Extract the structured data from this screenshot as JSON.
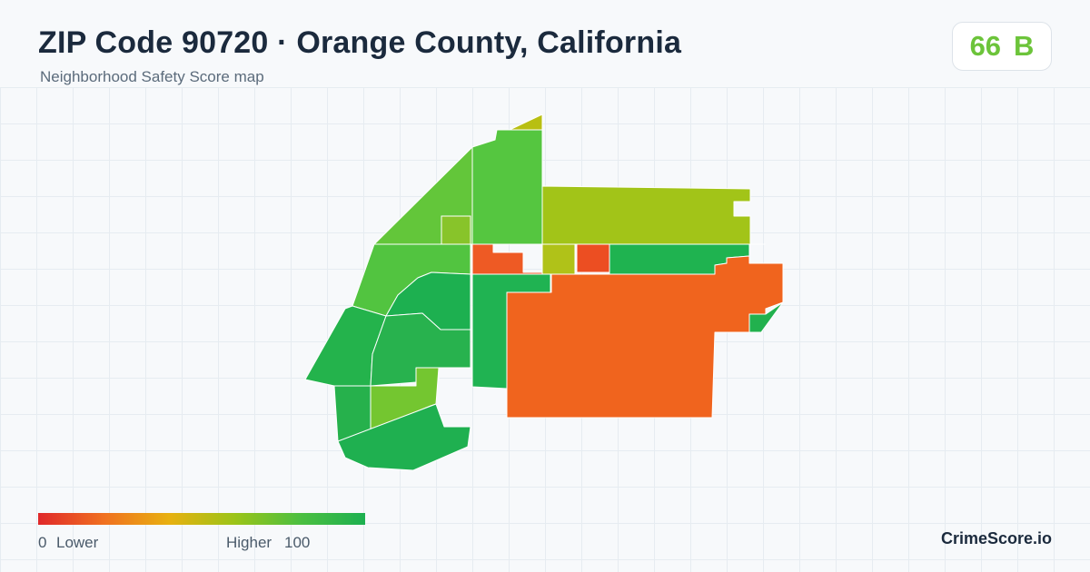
{
  "header": {
    "title": "ZIP Code 90720 · Orange County, California",
    "subtitle": "Neighborhood Safety Score map"
  },
  "score": {
    "value": "66",
    "grade": "B",
    "color": "#6cc43a"
  },
  "legend": {
    "min_label": "0",
    "low_label": "Lower",
    "high_label": "Higher",
    "max_label": "100",
    "gradient_colors": [
      "#e0282a",
      "#f07020",
      "#e8b010",
      "#9cc418",
      "#4cbf40",
      "#1db050"
    ]
  },
  "brand": "CrimeScore.io",
  "map": {
    "regions": [
      {
        "name": "north-tip",
        "color": "#b8bf12"
      },
      {
        "name": "northwest-strip",
        "color": "#63c63a"
      },
      {
        "name": "north-center",
        "color": "#55c640"
      },
      {
        "name": "small-block",
        "color": "#88c42a"
      },
      {
        "name": "east-upper",
        "color": "#a2c418"
      },
      {
        "name": "center-left-red",
        "color": "#ee5a24"
      },
      {
        "name": "center-small-yellow",
        "color": "#b0c218"
      },
      {
        "name": "center-small-red",
        "color": "#ec4e22"
      },
      {
        "name": "east-strip",
        "color": "#1fb350"
      },
      {
        "name": "west-upper",
        "color": "#52c440"
      },
      {
        "name": "west-middle",
        "color": "#24b34c"
      },
      {
        "name": "inner-cluster",
        "color": "#1db050"
      },
      {
        "name": "center-strip",
        "color": "#20b352"
      },
      {
        "name": "southeast-large",
        "color": "#f0641e"
      },
      {
        "name": "west-left",
        "color": "#28b24e"
      },
      {
        "name": "west-lower",
        "color": "#26b14c"
      },
      {
        "name": "lime-block",
        "color": "#74c630"
      },
      {
        "name": "south-strip",
        "color": "#1fb050"
      },
      {
        "name": "east-fragment",
        "color": "#22b14e"
      }
    ]
  }
}
